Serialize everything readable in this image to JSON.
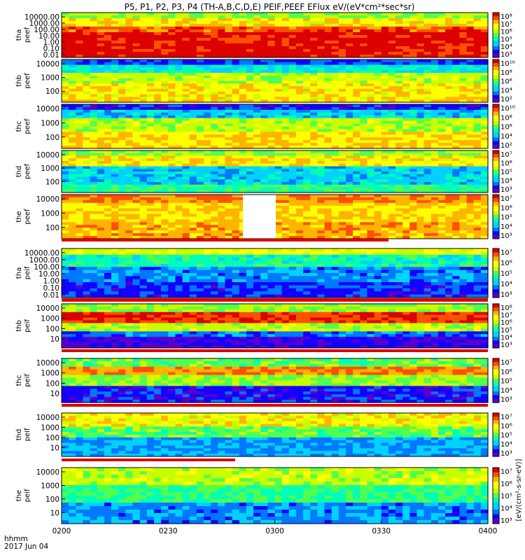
{
  "chart_data": {
    "type": "heatmap",
    "title": "P5, P1, P2, P3, P4 (TH-A,B,C,D,E) PEIF,PEEF EFlux eV/(eV*cm²*sec*sr)",
    "xlabel_row1": "hhmm",
    "xlabel_row2": "2017 Jun 04",
    "x_ticks": [
      "0200",
      "0230",
      "0300",
      "0330",
      "0400"
    ],
    "colorbar_label": "[eV/(cm²-s-sr-eV)]",
    "colormap": "rainbow",
    "palette": [
      "#5a00c8",
      "#1400ff",
      "#0078ff",
      "#00d2ff",
      "#00ffb4",
      "#50ff50",
      "#c8ff00",
      "#ffff00",
      "#ffb400",
      "#ff5000",
      "#dc0000"
    ],
    "flag_color": "#dc0000",
    "panels": [
      {
        "id": "tha-peef",
        "label1": "tha",
        "label2": "peef",
        "y_ticks": [
          "10000.00",
          "1000.00",
          "100.00",
          "10.00",
          "1.00",
          "0.10",
          "0.01"
        ],
        "cb_ticks": [
          "10⁸",
          "10⁷",
          "10⁶",
          "10⁵",
          "10⁴",
          "10³"
        ]
      },
      {
        "id": "thb-peef",
        "label1": "thb",
        "label2": "peef",
        "y_ticks": [
          "10000",
          "1000",
          "100"
        ],
        "cb_ticks": [
          "10¹⁰",
          "10⁸",
          "10⁶",
          "10⁴",
          "10²"
        ]
      },
      {
        "id": "thc-peef",
        "label1": "thc",
        "label2": "peef",
        "y_ticks": [
          "10000",
          "1000",
          "100"
        ],
        "cb_ticks": [
          "10¹⁰",
          "10⁸",
          "10⁶",
          "10⁴",
          "10²"
        ]
      },
      {
        "id": "thd-peef",
        "label1": "thd",
        "label2": "peef",
        "y_ticks": [
          "10000",
          "1000",
          "100"
        ],
        "cb_ticks": [
          "10⁷",
          "10⁶",
          "10⁵",
          "10⁴",
          "10³"
        ]
      },
      {
        "id": "the-peef",
        "label1": "the",
        "label2": "peef",
        "y_ticks": [
          "10000",
          "1000",
          "100"
        ],
        "cb_ticks": [
          "10⁷",
          "10⁶",
          "10⁵",
          "10⁴",
          "10³"
        ]
      },
      {
        "id": "tha-peif",
        "label1": "tha",
        "label2": "peif",
        "y_ticks": [
          "10000.00",
          "1000.00",
          "100.00",
          "10.00",
          "1.00",
          "0.10",
          "0.01"
        ],
        "cb_ticks": [
          "10⁷",
          "10⁶",
          "10⁵",
          "10⁴",
          "10³"
        ]
      },
      {
        "id": "thb-peif",
        "label1": "thb",
        "label2": "peif",
        "y_ticks": [
          "10000",
          "1000",
          "100",
          "10"
        ],
        "cb_ticks": [
          "10⁸",
          "10⁷",
          "10⁶",
          "10⁵",
          "10⁴",
          "10³"
        ]
      },
      {
        "id": "thc-peif",
        "label1": "thc",
        "label2": "peif",
        "y_ticks": [
          "10000",
          "1000",
          "100",
          "10"
        ],
        "cb_ticks": [
          "10⁷",
          "10⁶",
          "10⁵",
          "10⁴",
          "10³"
        ]
      },
      {
        "id": "thd-peif",
        "label1": "thd",
        "label2": "peif",
        "y_ticks": [
          "10000",
          "1000",
          "100",
          "10"
        ],
        "cb_ticks": [
          "10⁷",
          "10⁶",
          "10⁵",
          "10⁴",
          "10³"
        ]
      },
      {
        "id": "the-peif",
        "label1": "the",
        "label2": "peif",
        "y_ticks": [
          "10000",
          "1000",
          "100",
          "10"
        ],
        "cb_ticks": [
          "10⁷",
          "10⁶",
          "10⁵",
          "10⁴",
          "10³"
        ]
      }
    ]
  }
}
